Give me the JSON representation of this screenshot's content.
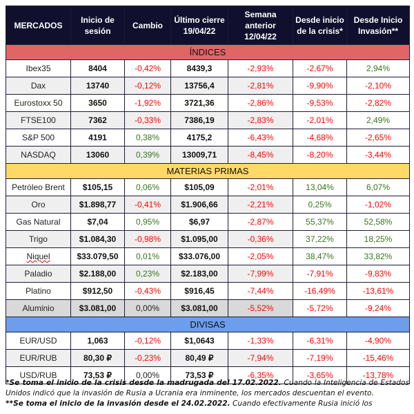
{
  "headers": [
    "MERCADOS",
    "Inicio de sesión",
    "Cambio",
    "Último cierre 19/04/22",
    "Semana anterior 12/04/22",
    "Desde inicio de la crisis*",
    "Desde Inicio Invasión**"
  ],
  "colors": {
    "header": "#10102e",
    "indices": "#e06666",
    "materias": "#ffd966",
    "divisas": "#6d9eeb",
    "negative": "#ff0000",
    "positive": "#38761d"
  },
  "sections": [
    {
      "key": "ind",
      "title": "ÍNDICES",
      "rows": [
        [
          "Ibex35",
          "8404",
          "-0,42%",
          "8439,3",
          "-2,93%",
          "-2,67%",
          "2,94%"
        ],
        [
          "Dax",
          "13740",
          "-0,12%",
          "13756,4",
          "-2,81%",
          "-9,90%",
          "-2,10%"
        ],
        [
          "Eurostoxx 50",
          "3650",
          "-1,92%",
          "3721,36",
          "-2,86%",
          "-9,53%",
          "-2,82%"
        ],
        [
          "FTSE100",
          "7362",
          "-0,33%",
          "7386,19",
          "-2,83%",
          "-2,01%",
          "2,49%"
        ],
        [
          "S&P 500",
          "4191",
          "0,38%",
          "4175,2",
          "-6,43%",
          "-4,68%",
          "-2,65%"
        ],
        [
          "NASDAQ",
          "13060",
          "0,39%",
          "13009,71",
          "-8,45%",
          "-8,20%",
          "-3,44%"
        ]
      ]
    },
    {
      "key": "mat",
      "title": "MATERIAS PRIMAS",
      "rows": [
        [
          "Petróleo Brent",
          "$105,15",
          "0,06%",
          "$105,09",
          "-2,01%",
          "13,04%",
          "6,07%"
        ],
        [
          "Oro",
          "$1.898,77",
          "-0,41%",
          "$1.906,66",
          "-2,21%",
          "0,25%",
          "-1,02%"
        ],
        [
          "Gas Natural",
          "$7,04",
          "0,95%",
          "$6,97",
          "-2,87%",
          "55,37%",
          "52,58%"
        ],
        [
          "Trigo",
          "$1.084,30",
          "-0,98%",
          "$1.095,00",
          "-0,36%",
          "37,22%",
          "18,25%"
        ],
        [
          "Niquel",
          "$33.079,50",
          "0,01%",
          "$33.076,00",
          "-2,05%",
          "38,47%",
          "33,82%"
        ],
        [
          "Paladio",
          "$2.188,00",
          "0,23%",
          "$2.183,00",
          "-7,99%",
          "-7,91%",
          "-9,83%"
        ],
        [
          "Platino",
          "$912,50",
          "-0,43%",
          "$916,45",
          "-7,44%",
          "-16,49%",
          "-13,61%"
        ],
        [
          "Aluminio",
          "$3.081,00",
          "0,00%",
          "$3.081,00",
          "-5,52%",
          "-5,72%",
          "-9,24%"
        ]
      ]
    },
    {
      "key": "div",
      "title": "DIVISAS",
      "rows": [
        [
          "EUR/USD",
          "1,063",
          "-0,12%",
          "$1,0643",
          "-1,33%",
          "-6,31%",
          "-4,90%"
        ],
        [
          "EUR/RUB",
          "80,30 ₽",
          "-0,23%",
          "80,49 ₽",
          "-7,94%",
          "-7,19%",
          "-15,46%"
        ],
        [
          "USD/RUB",
          "73,53 ₽",
          "0,00%",
          "73,53 ₽",
          "-6,35%",
          "-3,65%",
          "-13,78%"
        ]
      ]
    }
  ],
  "footnotes": {
    "crisis_bold": "*Se toma el inicio de la crisis desde la madrugada del 17.02.2022.",
    "crisis_text": " Cuando la Inteligencia de Estados Unidos indicó que la invasión de Rusia a Ucrania era inminente, los mercados descuentan el evento.",
    "invasion_bold": "**Se toma el inicio de la invasión desde el 24.02.2022.",
    "invasion_text": " Cuando efectivamente Rusia inició los"
  }
}
